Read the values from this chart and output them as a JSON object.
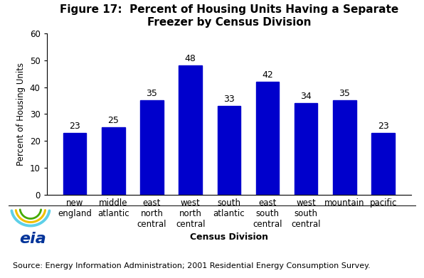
{
  "title": "Figure 17:  Percent of Housing Units Having a Separate\nFreezer by Census Division",
  "categories": [
    "new\nengland",
    "middle\natlantic",
    "east\nnorth\ncentral",
    "west\nnorth\ncentral",
    "south\natlantic",
    "east\nsouth\ncentral",
    "west\nsouth\ncentral",
    "mountain",
    "pacific"
  ],
  "values": [
    23,
    25,
    35,
    48,
    33,
    42,
    34,
    35,
    23
  ],
  "bar_color": "#0000CC",
  "ylabel": "Percent of Housing Units",
  "xlabel": "Census Division",
  "ylim": [
    0,
    60
  ],
  "yticks": [
    0,
    10,
    20,
    30,
    40,
    50,
    60
  ],
  "source_text": "Source: Energy Information Administration; 2001 Residential Energy Consumption Survey.",
  "title_fontsize": 11,
  "label_fontsize": 8.5,
  "axis_label_fontsize": 9,
  "source_fontsize": 8,
  "bar_label_fontsize": 9,
  "background_color": "#ffffff",
  "logo_swoosh_colors": [
    "#4EC8E8",
    "#F5C800",
    "#44AA44"
  ],
  "logo_text_color": "#003399"
}
